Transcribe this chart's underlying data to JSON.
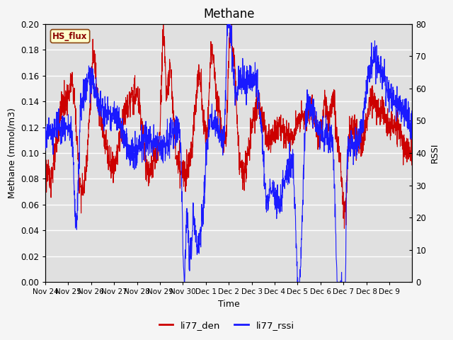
{
  "title": "Methane",
  "ylabel_left": "Methane (mmol/m3)",
  "ylabel_right": "RSSI",
  "xlabel": "Time",
  "ylim_left": [
    0.0,
    0.2
  ],
  "ylim_right": [
    0,
    80
  ],
  "yticks_left": [
    0.0,
    0.02,
    0.04,
    0.06,
    0.08,
    0.1,
    0.12,
    0.14,
    0.16,
    0.18,
    0.2
  ],
  "yticks_right": [
    0,
    10,
    20,
    30,
    40,
    50,
    60,
    70,
    80
  ],
  "xtick_labels": [
    "Nov 24",
    "Nov 25",
    "Nov 26",
    "Nov 27",
    "Nov 28",
    "Nov 29",
    "Nov 30",
    "Dec 1",
    "Dec 2",
    "Dec 3",
    "Dec 4",
    "Dec 5",
    "Dec 6",
    "Dec 7",
    "Dec 8",
    "Dec 9"
  ],
  "color_red": "#cc0000",
  "color_blue": "#1a1aff",
  "legend_label_red": "li77_den",
  "legend_label_blue": "li77_rssi",
  "hs_flux_label": "HS_flux",
  "bg_color": "#e0e0e0",
  "fig_bg_color": "#f5f5f5",
  "grid_color": "#ffffff",
  "title_fontsize": 12,
  "label_fontsize": 9,
  "tick_fontsize": 8.5
}
